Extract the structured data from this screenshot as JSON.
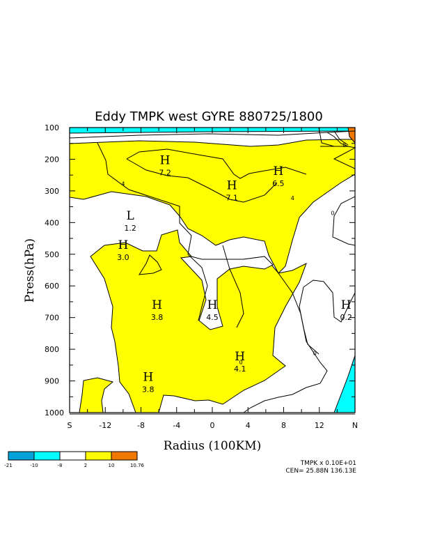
{
  "chart_data": {
    "type": "heatmap",
    "title": "Eddy TMPK west GYRE 880725/1800",
    "xlabel": "Radius (100KM)",
    "ylabel": "Press(hPa)",
    "x_ticks": [
      "S",
      "-12",
      "-8",
      "-4",
      "0",
      "4",
      "8",
      "12",
      "N"
    ],
    "x_tick_values": [
      -16,
      -12,
      -8,
      -4,
      0,
      4,
      8,
      12,
      16
    ],
    "y_ticks": [
      "100",
      "200",
      "300",
      "400",
      "500",
      "600",
      "700",
      "800",
      "900",
      "1000"
    ],
    "y_tick_values": [
      100,
      200,
      300,
      400,
      500,
      600,
      700,
      800,
      900,
      1000
    ],
    "xlim": [
      -16,
      16
    ],
    "ylim": [
      1000,
      100
    ],
    "extremes": [
      {
        "kind": "H",
        "value": "7.2",
        "x": -5.3,
        "y": 215
      },
      {
        "kind": "H",
        "value": "6.5",
        "x": 7.4,
        "y": 250
      },
      {
        "kind": "H",
        "value": "7.1",
        "x": 2.2,
        "y": 295
      },
      {
        "kind": "L",
        "value": "1.2",
        "x": -9.2,
        "y": 390
      },
      {
        "kind": "H",
        "value": "3.0",
        "x": -10.0,
        "y": 483
      },
      {
        "kind": "H",
        "value": "3.8",
        "x": -6.2,
        "y": 672
      },
      {
        "kind": "H",
        "value": "4.5",
        "x": 0.0,
        "y": 672
      },
      {
        "kind": "H",
        "value": "0.2",
        "x": 15.0,
        "y": 672
      },
      {
        "kind": "H",
        "value": "4.1",
        "x": 3.1,
        "y": 835
      },
      {
        "kind": "H",
        "value": "3.8",
        "x": -7.2,
        "y": 900
      }
    ],
    "contour_labels": [
      {
        "value": "8",
        "x": 14.8,
        "y": 155
      },
      {
        "value": "4",
        "x": -10.0,
        "y": 277
      },
      {
        "value": "4",
        "x": 9.0,
        "y": 322
      },
      {
        "value": "0",
        "x": 13.5,
        "y": 370
      },
      {
        "value": "0",
        "x": 11.5,
        "y": 812
      },
      {
        "value": "0",
        "x": 3.2,
        "y": 840
      }
    ],
    "colorbar": {
      "bounds": [
        "-21",
        "-10",
        "-8",
        "2",
        "10",
        "10.76"
      ],
      "colors": [
        "#00a0d8",
        "#00ffff",
        "#ffffff",
        "#ffff00",
        "#f07800"
      ]
    },
    "info": {
      "scale": "TMPK x  0.10E+01",
      "center": "CEN= 25.88N  136.13E"
    }
  }
}
